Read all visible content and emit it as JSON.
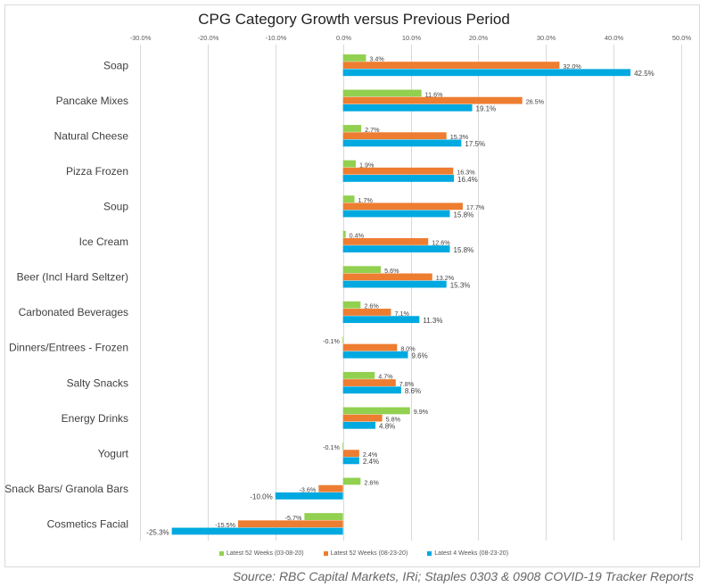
{
  "chart_data": {
    "type": "bar",
    "orientation": "horizontal",
    "title": "CPG Category Growth versus Previous Period",
    "xlabel": "",
    "ylabel": "",
    "xlim": [
      -30,
      50
    ],
    "x_ticks": [
      "-30.0%",
      "-20.0%",
      "-10.0%",
      "0.0%",
      "10.0%",
      "20.0%",
      "30.0%",
      "40.0%",
      "50.0%"
    ],
    "x_tick_values": [
      -30,
      -20,
      -10,
      0,
      10,
      20,
      30,
      40,
      50
    ],
    "grid": true,
    "legend_position": "bottom",
    "categories": [
      "Soap",
      "Pancake Mixes",
      "Natural Cheese",
      "Pizza Frozen",
      "Soup",
      "Ice Cream",
      "Beer (Incl Hard Seltzer)",
      "Carbonated Beverages",
      "Dinners/Entrees - Frozen",
      "Salty Snacks",
      "Energy Drinks",
      "Yogurt",
      "Snack Bars/ Granola Bars",
      "Cosmetics Facial"
    ],
    "series": [
      {
        "name": "Latest 52 Weeks (03-08-20)",
        "color": "#92D050",
        "values": [
          3.4,
          11.6,
          2.7,
          1.9,
          1.7,
          0.4,
          5.6,
          2.6,
          -0.1,
          4.7,
          9.9,
          -0.1,
          2.6,
          -5.7
        ]
      },
      {
        "name": "Latest 52 Weeks (08-23-20)",
        "color": "#ED7D31",
        "values": [
          32.0,
          26.5,
          15.3,
          16.3,
          17.7,
          12.6,
          13.2,
          7.1,
          8.0,
          7.8,
          5.8,
          2.4,
          -3.6,
          -15.5
        ]
      },
      {
        "name": "Latest 4 Weeks (08-23-20)",
        "color": "#00A9E0",
        "values": [
          42.5,
          19.1,
          17.5,
          16.4,
          15.8,
          15.8,
          15.3,
          11.3,
          9.6,
          8.6,
          4.8,
          2.4,
          -10.0,
          -25.3
        ]
      }
    ],
    "value_suffix": "%"
  },
  "source": "Source: RBC Capital Markets, IRi; Staples 0303 & 0908 COVID-19 Tracker Reports"
}
